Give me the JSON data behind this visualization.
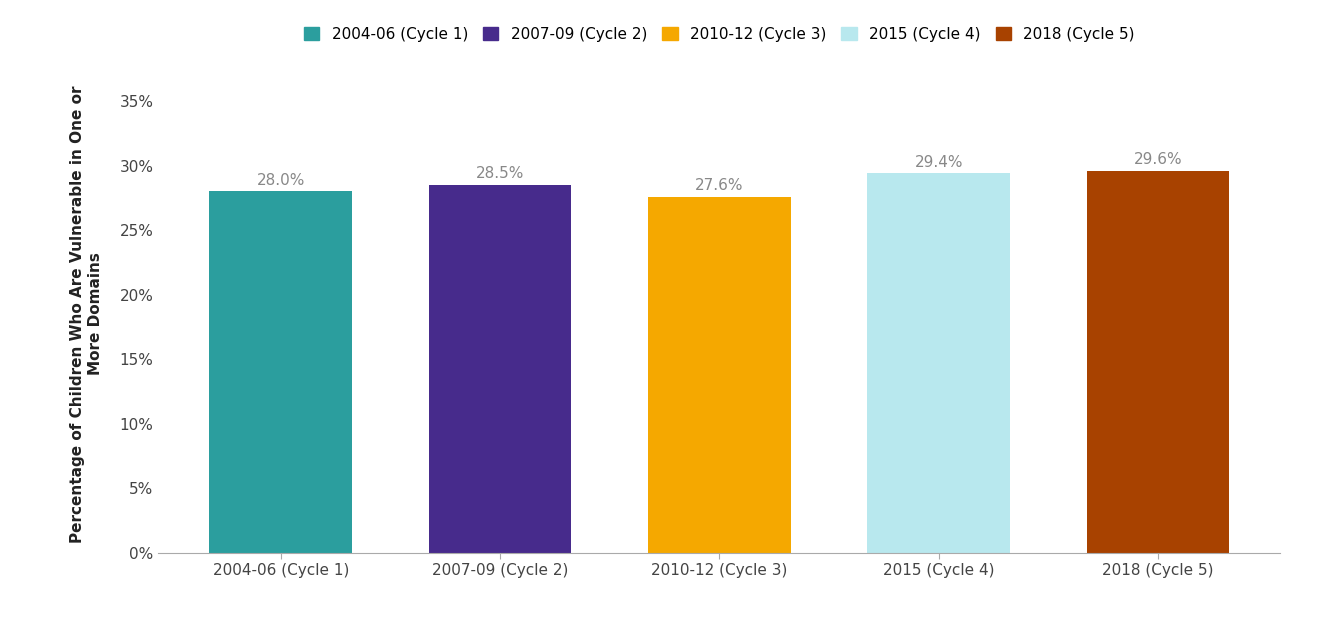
{
  "categories": [
    "2004-06 (Cycle 1)",
    "2007-09 (Cycle 2)",
    "2010-12 (Cycle 3)",
    "2015 (Cycle 4)",
    "2018 (Cycle 5)"
  ],
  "values": [
    28.0,
    28.5,
    27.6,
    29.4,
    29.6
  ],
  "bar_colors": [
    "#2B9E9E",
    "#472B8C",
    "#F5A800",
    "#B8E8EE",
    "#A84200"
  ],
  "value_labels": [
    "28.0%",
    "28.5%",
    "27.6%",
    "29.4%",
    "29.6%"
  ],
  "ylabel_line1": "Percentage of Children Who Are Vulnerable in One or",
  "ylabel_line2": "More Domains",
  "ylim": [
    0,
    37
  ],
  "yticks": [
    0,
    5,
    10,
    15,
    20,
    25,
    30,
    35
  ],
  "ytick_labels": [
    "0%",
    "5%",
    "10%",
    "15%",
    "20%",
    "25%",
    "30%",
    "35%"
  ],
  "legend_labels": [
    "2004-06 (Cycle 1)",
    "2007-09 (Cycle 2)",
    "2010-12 (Cycle 3)",
    "2015 (Cycle 4)",
    "2018 (Cycle 5)"
  ],
  "legend_colors": [
    "#2B9E9E",
    "#472B8C",
    "#F5A800",
    "#B8E8EE",
    "#A84200"
  ],
  "background_color": "#ffffff",
  "bar_width": 0.65
}
